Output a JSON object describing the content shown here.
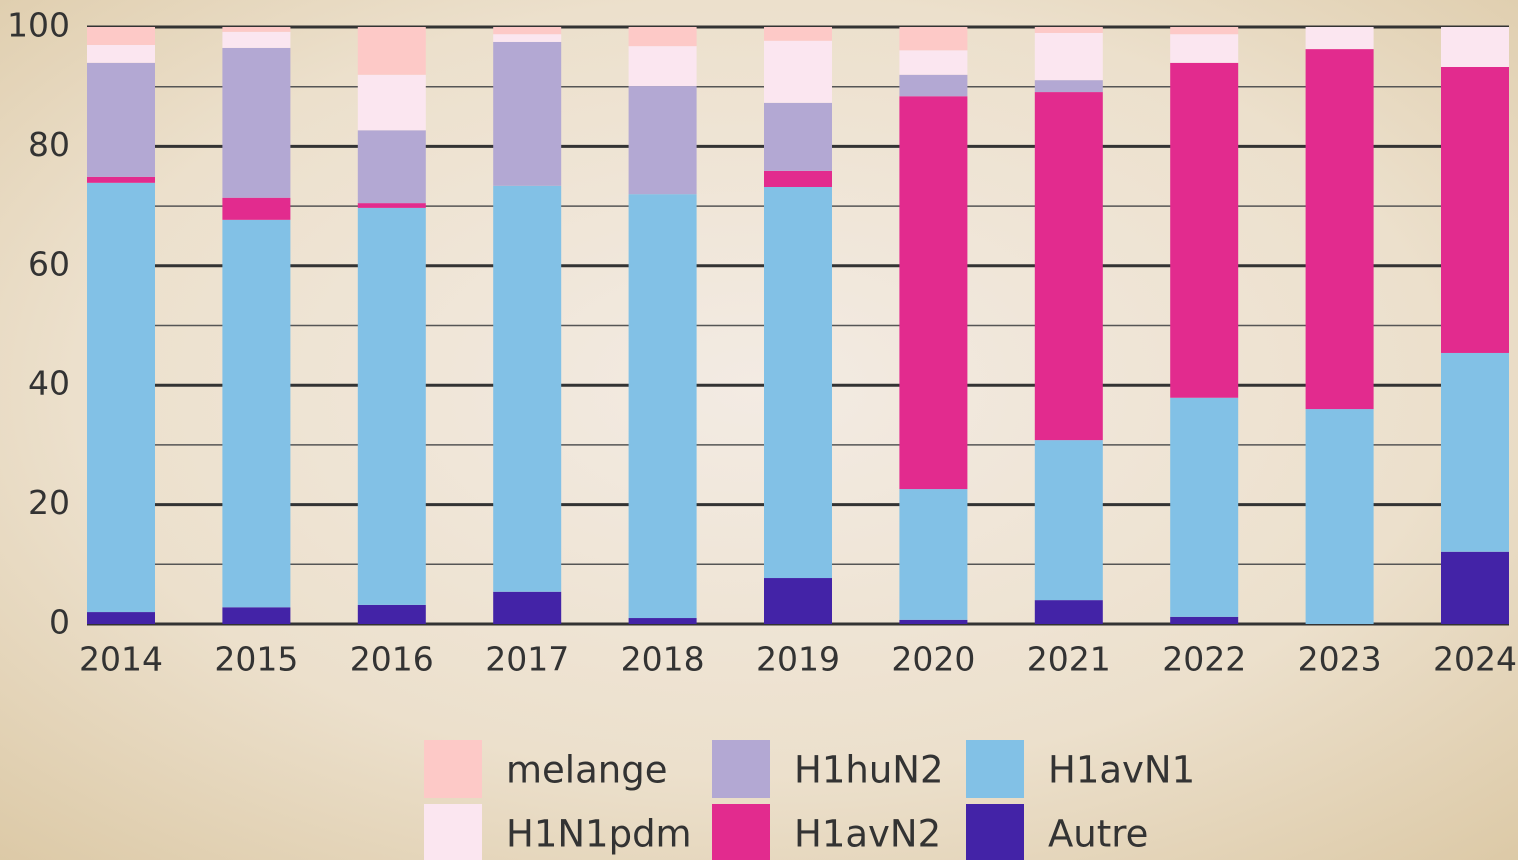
{
  "chart_data": {
    "type": "stacked_bar",
    "categories": [
      "2014",
      "2015",
      "2016",
      "2017",
      "2018",
      "2019",
      "2020",
      "2021",
      "2022",
      "2023",
      "2024"
    ],
    "series": [
      {
        "name": "Autre",
        "color": "#4323a7",
        "values": [
          2.0,
          2.8,
          3.2,
          5.4,
          1.0,
          7.7,
          0.7,
          4.0,
          1.2,
          0,
          12.1
        ]
      },
      {
        "name": "H1avN1",
        "color": "#82c1e6",
        "values": [
          71.9,
          64.9,
          66.5,
          68.0,
          71.0,
          65.5,
          21.9,
          26.8,
          36.7,
          36.0,
          33.3
        ]
      },
      {
        "name": "H1avN2",
        "color": "#e22b8e",
        "values": [
          1.0,
          3.7,
          0.8,
          0,
          0,
          2.7,
          65.8,
          58.3,
          56.1,
          60.3,
          47.9
        ]
      },
      {
        "name": "H1huN2",
        "color": "#b3a8d3",
        "values": [
          19.1,
          25.1,
          12.2,
          24.1,
          18.1,
          11.4,
          3.6,
          2.0,
          0,
          0,
          0
        ]
      },
      {
        "name": "H1N1pdm",
        "color": "#fbe6f0",
        "values": [
          3.0,
          2.7,
          9.3,
          1.3,
          6.7,
          10.4,
          4.1,
          7.9,
          4.8,
          3.7,
          6.7
        ]
      },
      {
        "name": "melange",
        "color": "#fdc9c7",
        "values": [
          3.0,
          0.8,
          8.0,
          1.2,
          3.2,
          2.3,
          3.9,
          1.0,
          1.2,
          0,
          0
        ]
      }
    ],
    "ylim": [
      0,
      100
    ],
    "yticks": [
      0,
      20,
      40,
      60,
      80,
      100
    ],
    "minor_yticks": [
      10,
      30,
      50,
      70,
      90
    ],
    "grid": true,
    "legend": "bottom"
  }
}
